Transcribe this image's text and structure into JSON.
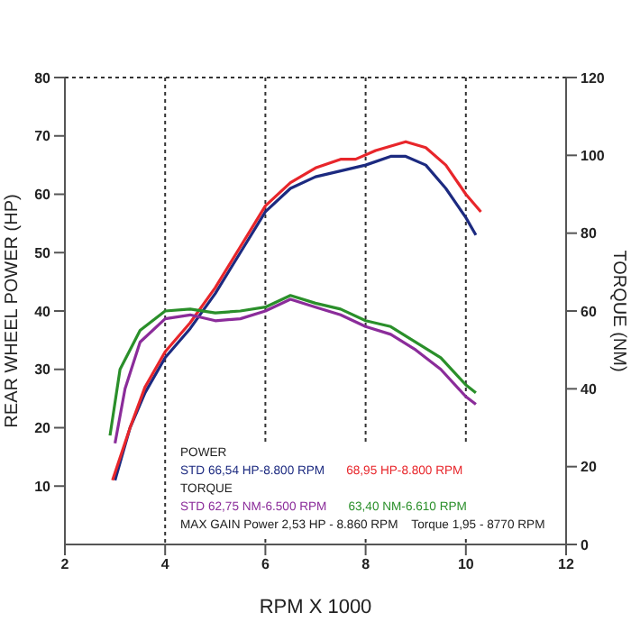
{
  "chart_data": {
    "type": "line",
    "xlabel": "RPM X 1000",
    "ylabel": "REAR WHEEL POWER (HP)",
    "y2label": "TORQUE (NM)",
    "xlim": [
      2,
      12
    ],
    "xticks": [
      2,
      4,
      6,
      8,
      10,
      12
    ],
    "ylim": [
      0,
      80
    ],
    "yticks": [
      10,
      20,
      30,
      40,
      50,
      60,
      70,
      80
    ],
    "y2lim": [
      0,
      120
    ],
    "y2ticks": [
      0,
      20,
      40,
      60,
      80,
      100,
      120
    ],
    "grid": true,
    "legend": "bottom",
    "marker": "none",
    "line_style": "solid",
    "annotations": [
      "POWER",
      "TORQUE",
      "MAX GAIN Power 2,53 HP - 8.860 RPM    Torque 1,95 - 8770 RPM"
    ],
    "series": [
      {
        "name": "STD 66,54 HP-8.800 RPM",
        "color": "#1c2a80",
        "x": [
          3.0,
          3.3,
          3.6,
          4,
          4.5,
          5,
          5.5,
          6,
          6.5,
          7,
          7.5,
          8,
          8.5,
          8.8,
          9.2,
          9.6,
          10,
          10.2
        ],
        "values": [
          11,
          20,
          26,
          32,
          37,
          43,
          50,
          57,
          61,
          63,
          64,
          65,
          66.5,
          66.5,
          65,
          61,
          56,
          53
        ]
      },
      {
        "name": "68,95 HP-8.800 RPM",
        "color": "#e8262b",
        "x": [
          2.95,
          3.3,
          3.6,
          4,
          4.5,
          5,
          5.5,
          6,
          6.5,
          7,
          7.5,
          7.8,
          8.2,
          8.8,
          9.2,
          9.6,
          10,
          10.3
        ],
        "values": [
          11,
          20,
          27,
          33,
          38,
          44,
          51,
          58,
          62,
          64.5,
          66,
          66,
          67.5,
          69,
          68,
          65,
          60,
          57
        ]
      },
      {
        "name": "STD 62,75 NM-6.500 RPM",
        "color": "#8b2c9a",
        "axis": "y2",
        "x": [
          3.0,
          3.2,
          3.5,
          4,
          4.5,
          5,
          5.5,
          6,
          6.5,
          7,
          7.5,
          8,
          8.5,
          9,
          9.5,
          10,
          10.2
        ],
        "values": [
          26,
          40,
          52,
          58,
          59,
          57.5,
          58,
          60,
          63,
          61,
          59,
          56,
          54,
          50,
          45,
          38,
          36
        ]
      },
      {
        "name": "63,40 NM-6.610 RPM",
        "color": "#2a8f2a",
        "axis": "y2",
        "x": [
          2.9,
          3.1,
          3.5,
          4,
          4.5,
          5,
          5.5,
          6,
          6.5,
          7,
          7.5,
          8,
          8.5,
          9,
          9.5,
          10,
          10.2
        ],
        "values": [
          28,
          45,
          55,
          60,
          60.5,
          59.5,
          60,
          61,
          64,
          62,
          60.5,
          57.5,
          56,
          52,
          48,
          41,
          39
        ]
      }
    ]
  }
}
